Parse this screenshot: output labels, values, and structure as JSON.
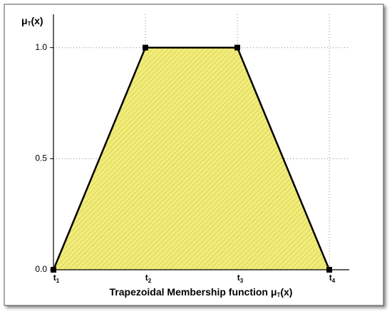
{
  "chart_data": {
    "type": "area",
    "y_label": "μT(x)",
    "x_label": "Trapezoidal Membership function μT(x)",
    "categories": [
      "t1",
      "t2",
      "t3",
      "t4"
    ],
    "values": [
      0,
      1,
      1,
      0
    ],
    "color": "#f2ec78",
    "line_color": "#000000",
    "ylim": [
      0,
      1.15
    ],
    "yticks": [
      {
        "value": 0,
        "label": "0.0"
      },
      0.5,
      {
        "value": 1,
        "label": "1.0"
      }
    ],
    "grid": true
  }
}
